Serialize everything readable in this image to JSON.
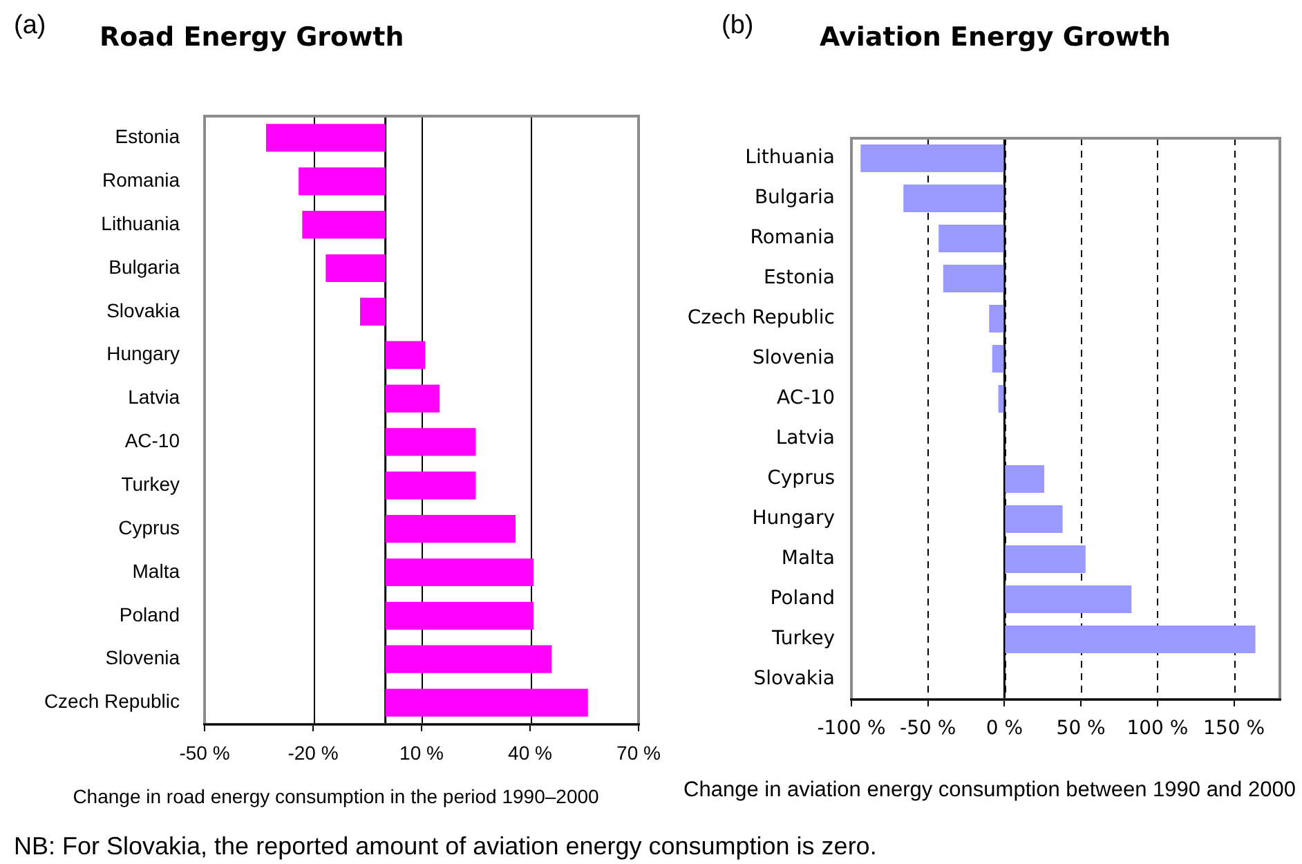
{
  "chart_data": [
    {
      "type": "bar",
      "orientation": "horizontal",
      "title": "Road Energy Growth",
      "annotations": [
        "(a)"
      ],
      "xlabel": "Change in road energy consumption in the period 1990–2000",
      "categories": [
        "Estonia",
        "Romania",
        "Lithuania",
        "Bulgaria",
        "Slovakia",
        "Hungary",
        "Latvia",
        "AC-10",
        "Turkey",
        "Cyprus",
        "Malta",
        "Poland",
        "Slovenia",
        "Czech Republic"
      ],
      "values": [
        -33,
        -24,
        -23,
        -16.5,
        -7,
        11,
        15,
        25,
        25,
        36,
        41,
        41,
        46,
        56
      ],
      "color": "#ff00ff",
      "xlim": [
        -50,
        70
      ],
      "xticks": [
        {
          "value": -50,
          "label": "-50 %"
        },
        {
          "value": -20,
          "label": "-20 %"
        },
        {
          "value": 10,
          "label": "10 %"
        },
        {
          "value": 40,
          "label": "40 %"
        },
        {
          "value": 70,
          "label": "70 %"
        }
      ],
      "grid": "x",
      "ref_lines": [
        {
          "axis": "x",
          "value": 0
        }
      ]
    },
    {
      "type": "bar",
      "orientation": "horizontal",
      "title": "Aviation Energy Growth",
      "annotations": [
        "(b)",
        "NB: For Slovakia, the reported amount of aviation energy consumption is zero."
      ],
      "xlabel": "Change in aviation energy consumption between 1990 and 2000",
      "categories": [
        "Lithuania",
        "Bulgaria",
        "Romania",
        "Estonia",
        "Czech Republic",
        "Slovenia",
        "AC-10",
        "Latvia",
        "Cyprus",
        "Hungary",
        "Malta",
        "Poland",
        "Turkey",
        "Slovakia"
      ],
      "values": [
        -94,
        -66,
        -43,
        -40,
        -10,
        -8,
        -4,
        0,
        26,
        38,
        53,
        83,
        164,
        0
      ],
      "color": "#9999ff",
      "xlim": [
        -100,
        180
      ],
      "xticks": [
        {
          "value": -100,
          "label": "-100 %"
        },
        {
          "value": -50,
          "label": "-50 %"
        },
        {
          "value": 0,
          "label": "0 %"
        },
        {
          "value": 50,
          "label": "50 %"
        },
        {
          "value": 100,
          "label": "100 %"
        },
        {
          "value": 150,
          "label": "150 %"
        }
      ],
      "grid": "x",
      "ref_lines": [
        {
          "axis": "x",
          "value": 0
        }
      ]
    }
  ]
}
